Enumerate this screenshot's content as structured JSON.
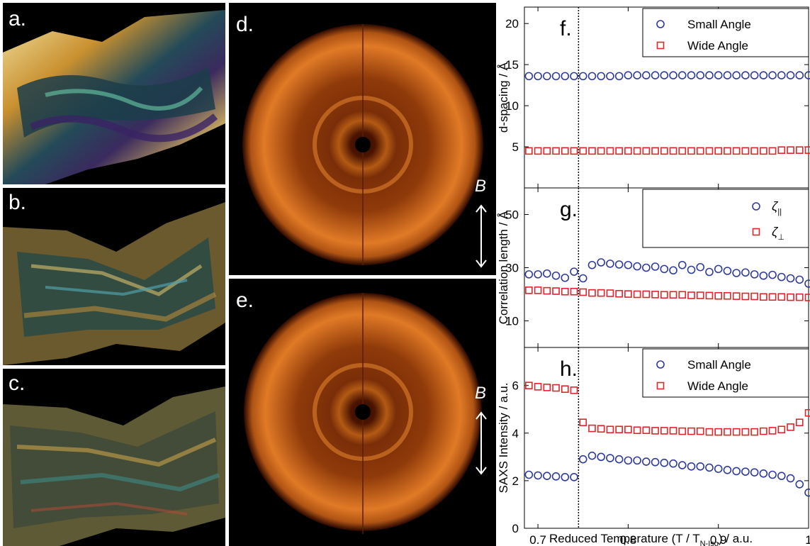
{
  "panels": {
    "a": {
      "label": "a."
    },
    "b": {
      "label": "b."
    },
    "c": {
      "label": "c."
    },
    "d": {
      "label": "d.",
      "field_label": "B"
    },
    "e": {
      "label": "e.",
      "field_label": "B"
    }
  },
  "colors": {
    "small_angle": "#2e3a9e",
    "wide_angle": "#e0242a",
    "ring_bright": "#ff9a3a",
    "ring_dark": "#2a0800"
  },
  "chart_data": [
    {
      "panel": "f.",
      "type": "scatter",
      "ylabel": "d-spacing / Å",
      "ylim": [
        0,
        22
      ],
      "yticks": [
        5,
        10,
        15,
        20
      ],
      "xlim": [
        0.685,
        1.0
      ],
      "legend": "top-right",
      "series": [
        {
          "name": "Small Angle",
          "marker": "circle",
          "x": [
            0.69,
            0.7,
            0.71,
            0.72,
            0.73,
            0.74,
            0.75,
            0.76,
            0.77,
            0.78,
            0.79,
            0.8,
            0.81,
            0.82,
            0.83,
            0.84,
            0.85,
            0.86,
            0.87,
            0.88,
            0.89,
            0.9,
            0.91,
            0.92,
            0.93,
            0.94,
            0.95,
            0.96,
            0.97,
            0.98,
            0.99,
            1.0
          ],
          "y": [
            13.6,
            13.6,
            13.6,
            13.6,
            13.6,
            13.6,
            13.6,
            13.6,
            13.6,
            13.6,
            13.6,
            13.7,
            13.7,
            13.7,
            13.7,
            13.7,
            13.7,
            13.7,
            13.7,
            13.7,
            13.7,
            13.7,
            13.7,
            13.7,
            13.7,
            13.7,
            13.7,
            13.7,
            13.7,
            13.7,
            13.7,
            13.7
          ]
        },
        {
          "name": "Wide Angle",
          "marker": "square",
          "x": [
            0.69,
            0.7,
            0.71,
            0.72,
            0.73,
            0.74,
            0.75,
            0.76,
            0.77,
            0.78,
            0.79,
            0.8,
            0.81,
            0.82,
            0.83,
            0.84,
            0.85,
            0.86,
            0.87,
            0.88,
            0.89,
            0.9,
            0.91,
            0.92,
            0.93,
            0.94,
            0.95,
            0.96,
            0.97,
            0.98,
            0.99,
            1.0
          ],
          "y": [
            4.5,
            4.5,
            4.5,
            4.5,
            4.5,
            4.5,
            4.5,
            4.5,
            4.5,
            4.5,
            4.5,
            4.5,
            4.5,
            4.5,
            4.5,
            4.5,
            4.5,
            4.5,
            4.5,
            4.5,
            4.5,
            4.5,
            4.5,
            4.5,
            4.5,
            4.5,
            4.5,
            4.5,
            4.6,
            4.6,
            4.6,
            4.6
          ]
        }
      ]
    },
    {
      "panel": "g.",
      "type": "scatter",
      "ylabel": "Correlation length / Å",
      "ylim": [
        0,
        60
      ],
      "yticks": [
        10,
        30,
        50
      ],
      "xlim": [
        0.685,
        1.0
      ],
      "legend": "top-right",
      "series": [
        {
          "name": "ζ",
          "name_sub": "||",
          "marker": "circle",
          "x": [
            0.69,
            0.7,
            0.71,
            0.72,
            0.73,
            0.74,
            0.75,
            0.76,
            0.77,
            0.78,
            0.79,
            0.8,
            0.81,
            0.82,
            0.83,
            0.84,
            0.85,
            0.86,
            0.87,
            0.88,
            0.89,
            0.9,
            0.91,
            0.92,
            0.93,
            0.94,
            0.95,
            0.96,
            0.97,
            0.98,
            0.99,
            1.0
          ],
          "y": [
            27.5,
            27.5,
            27.8,
            27.0,
            26.2,
            28.5,
            26.0,
            31.0,
            32.0,
            31.5,
            31.2,
            31.0,
            30.5,
            30.0,
            30.4,
            29.5,
            29.0,
            31.0,
            29.2,
            30.2,
            28.4,
            29.5,
            28.8,
            28.0,
            28.2,
            27.5,
            27.0,
            27.3,
            26.5,
            26.0,
            25.5,
            24.0
          ]
        },
        {
          "name": "ζ",
          "name_sub": "⊥",
          "marker": "square",
          "x": [
            0.69,
            0.7,
            0.71,
            0.72,
            0.73,
            0.74,
            0.75,
            0.76,
            0.77,
            0.78,
            0.79,
            0.8,
            0.81,
            0.82,
            0.83,
            0.84,
            0.85,
            0.86,
            0.87,
            0.88,
            0.89,
            0.9,
            0.91,
            0.92,
            0.93,
            0.94,
            0.95,
            0.96,
            0.97,
            0.98,
            0.99,
            1.0
          ],
          "y": [
            21.5,
            21.5,
            21.3,
            21.2,
            21.0,
            21.0,
            20.8,
            20.5,
            20.5,
            20.4,
            20.2,
            20.1,
            20.0,
            20.0,
            19.9,
            19.8,
            19.8,
            19.8,
            19.6,
            19.6,
            19.5,
            19.4,
            19.4,
            19.3,
            19.2,
            19.2,
            19.0,
            19.0,
            19.0,
            18.9,
            18.9,
            18.8
          ]
        }
      ]
    },
    {
      "panel": "h.",
      "type": "scatter",
      "xlabel": "Reduced Temperature (T / T",
      "xlabel_sub": "N-Iso",
      "xlabel_tail": ") / a.u.",
      "ylabel": "SAXS Intensity / a.u.",
      "ylim": [
        0,
        7.6
      ],
      "yticks": [
        0,
        2,
        4,
        6
      ],
      "xlim": [
        0.685,
        1.0
      ],
      "xticks": [
        0.7,
        0.8,
        0.9,
        1
      ],
      "xticklabels": [
        "0.7",
        "0.8",
        "0.9",
        "1"
      ],
      "legend": "top-right",
      "series": [
        {
          "name": "Small Angle",
          "marker": "circle",
          "x": [
            0.69,
            0.7,
            0.71,
            0.72,
            0.73,
            0.74,
            0.75,
            0.76,
            0.77,
            0.78,
            0.79,
            0.8,
            0.81,
            0.82,
            0.83,
            0.84,
            0.85,
            0.86,
            0.87,
            0.88,
            0.89,
            0.9,
            0.91,
            0.92,
            0.93,
            0.94,
            0.95,
            0.96,
            0.97,
            0.98,
            0.99,
            1.0
          ],
          "y": [
            2.25,
            2.22,
            2.2,
            2.18,
            2.15,
            2.15,
            2.9,
            3.05,
            3.0,
            2.95,
            2.9,
            2.85,
            2.85,
            2.8,
            2.78,
            2.75,
            2.72,
            2.65,
            2.6,
            2.6,
            2.55,
            2.5,
            2.45,
            2.4,
            2.38,
            2.35,
            2.3,
            2.25,
            2.2,
            2.1,
            1.85,
            1.5
          ]
        },
        {
          "name": "Wide Angle",
          "marker": "square",
          "x": [
            0.69,
            0.7,
            0.71,
            0.72,
            0.73,
            0.74,
            0.75,
            0.76,
            0.77,
            0.78,
            0.79,
            0.8,
            0.81,
            0.82,
            0.83,
            0.84,
            0.85,
            0.86,
            0.87,
            0.88,
            0.89,
            0.9,
            0.91,
            0.92,
            0.93,
            0.94,
            0.95,
            0.96,
            0.97,
            0.98,
            0.99,
            1.0
          ],
          "y": [
            6.0,
            5.95,
            5.92,
            5.9,
            5.85,
            5.8,
            4.45,
            4.2,
            4.18,
            4.15,
            4.15,
            4.15,
            4.12,
            4.12,
            4.1,
            4.1,
            4.1,
            4.08,
            4.08,
            4.08,
            4.05,
            4.05,
            4.05,
            4.05,
            4.05,
            4.05,
            4.08,
            4.1,
            4.15,
            4.25,
            4.45,
            4.85
          ]
        }
      ]
    }
  ],
  "transition_x": 0.745
}
